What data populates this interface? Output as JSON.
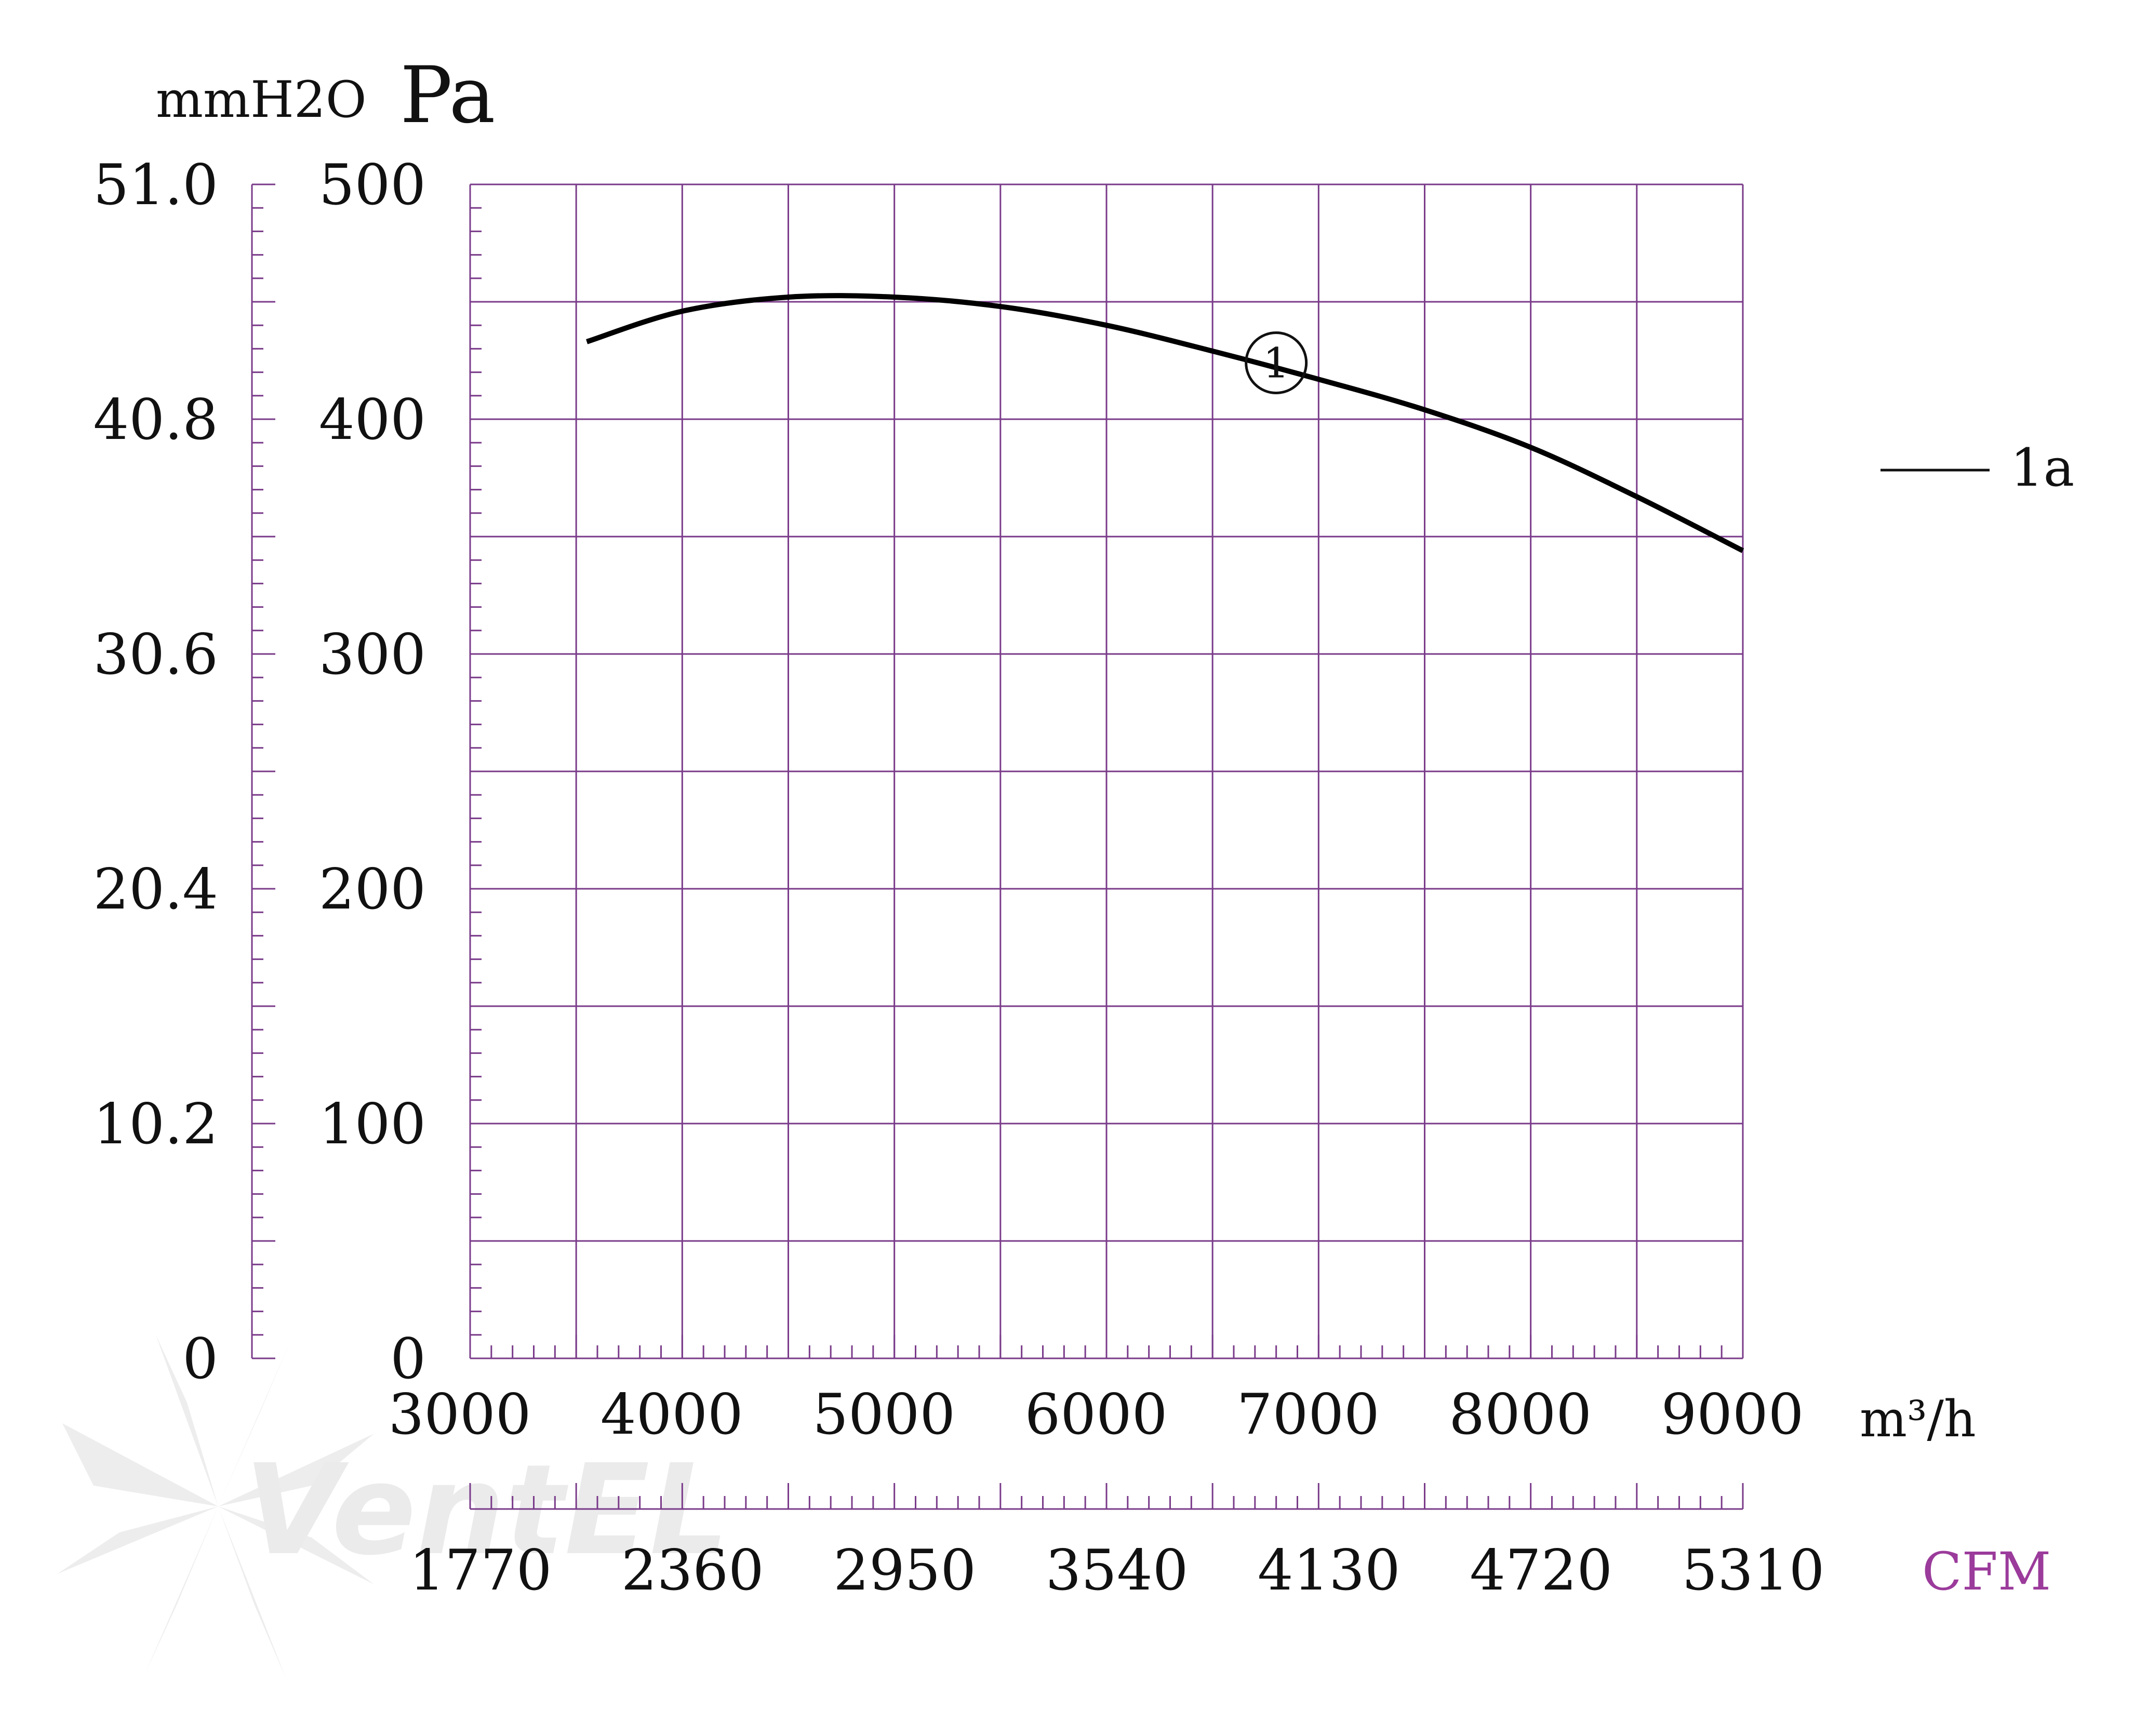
{
  "chart_data": {
    "type": "line",
    "title": "",
    "y_units": {
      "left": "mmH2O",
      "right": "Pa"
    },
    "y_left_ticks": [
      "51.0",
      "40.8",
      "30.6",
      "20.4",
      "10.2",
      "0"
    ],
    "y_ticks": [
      "500",
      "400",
      "300",
      "200",
      "100",
      "0"
    ],
    "ylim": [
      0,
      500
    ],
    "xlim": [
      3000,
      9000
    ],
    "x_ticks": [
      "3000",
      "4000",
      "5000",
      "6000",
      "7000",
      "8000",
      "9000"
    ],
    "x_unit": "m³/h",
    "x2_ticks": [
      "1770",
      "2360",
      "2950",
      "3540",
      "4130",
      "4720",
      "5310"
    ],
    "x2_unit": "CFM",
    "grid": true,
    "legend_position": "right",
    "legend": [
      {
        "label": "1a",
        "style": "solid"
      }
    ],
    "series": [
      {
        "name": "1a",
        "marker_label": "1",
        "x": [
          3550,
          4000,
          4500,
          5000,
          5500,
          6000,
          6500,
          7000,
          7500,
          8000,
          8500,
          9000
        ],
        "values": [
          433,
          446,
          452,
          452,
          448,
          440,
          429,
          417,
          404,
          388,
          367,
          344
        ]
      }
    ],
    "curve_marker_x": 6800
  },
  "colors": {
    "grid": "#7a3b8a",
    "curve": "#000000",
    "text": "#111111",
    "cfm_label": "#9b3b9b"
  },
  "watermark": "Vent-el"
}
